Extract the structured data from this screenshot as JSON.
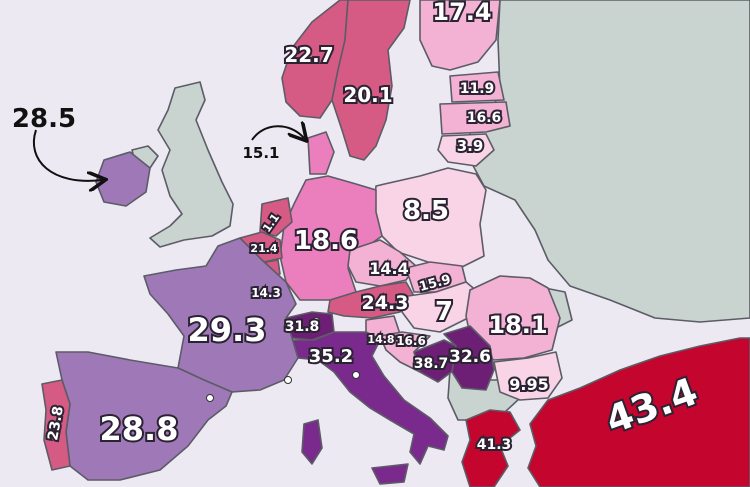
{
  "map": {
    "colors": {
      "sea": "#ece9f2",
      "neutral": "#c9d3d0",
      "border": "#5c5c66",
      "pale_pink": "#f9d3e6",
      "light_pink": "#f3b1d3",
      "pink": "#eb7fbd",
      "rose": "#d55b84",
      "lavender": "#9f78b8",
      "purple": "#7a2a8c",
      "dark_purple": "#6c1f74",
      "red": "#c4052e"
    },
    "labels": {
      "finland": "17.4",
      "norway": "22.7",
      "sweden": "20.1",
      "estonia": "11.9",
      "latvia": "16.6",
      "lithuania": "3.9",
      "poland": "8.5",
      "germany": "18.6",
      "netherlands": "1.1",
      "belgium": "21.4",
      "luxembourg": "14.3",
      "czechia": "14.4",
      "slovakia": "15.9",
      "austria": "24.3",
      "hungary": "7",
      "romania": "18.1",
      "slovenia": "14.8",
      "croatia": "16.6",
      "bosnia": "38.7",
      "serbia": "32.6",
      "bulgaria": "9.95",
      "switzerland": "31.8",
      "italy": "35.2",
      "france": "29.3",
      "spain": "28.8",
      "portugal": "23.8",
      "greece": "41.3",
      "turkey": "43.4"
    },
    "callouts": {
      "ireland": "28.5",
      "denmark": "15.1"
    }
  }
}
